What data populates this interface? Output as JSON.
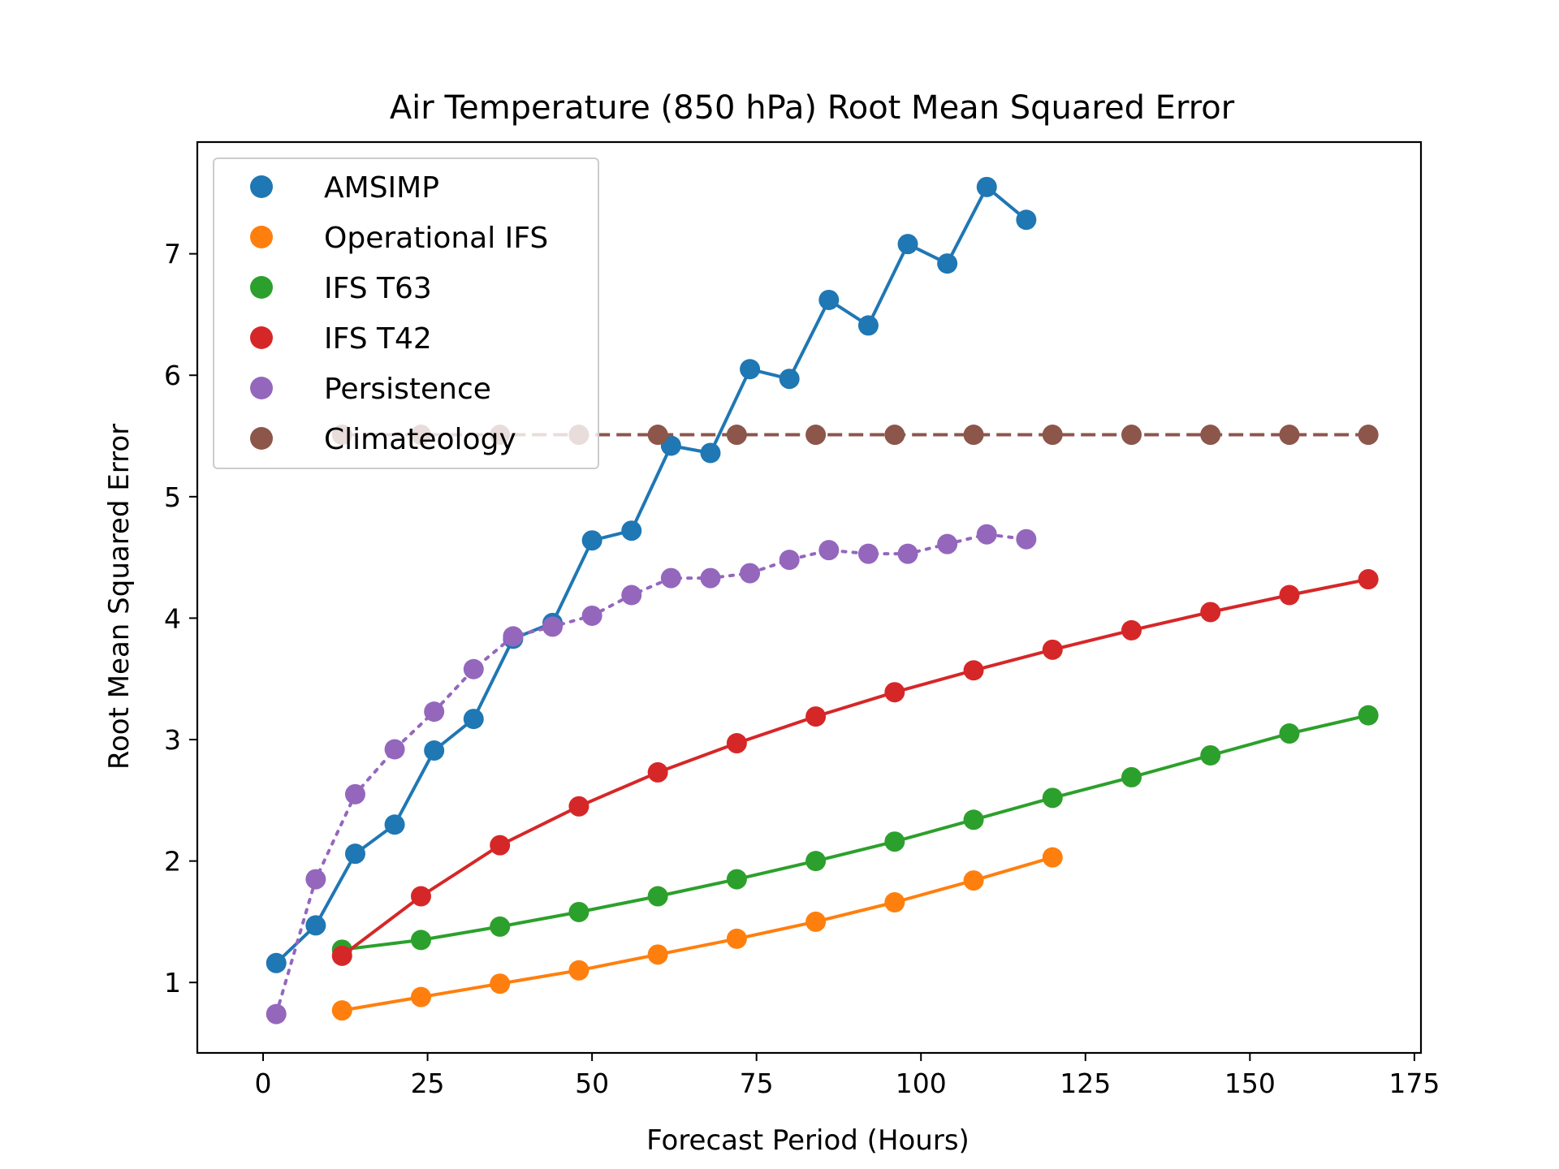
{
  "chart_data": {
    "type": "line",
    "title": "Air Temperature (850 hPa) Root Mean Squared Error",
    "xlabel": "Forecast Period (Hours)",
    "ylabel": "Root Mean Squared Error",
    "xlim": [
      -10,
      176
    ],
    "ylim": [
      0.42,
      7.92
    ],
    "xticks": [
      0,
      25,
      50,
      75,
      100,
      125,
      150,
      175
    ],
    "yticks": [
      1,
      2,
      3,
      4,
      5,
      6,
      7
    ],
    "grid": false,
    "legend_position": "top-left",
    "series": [
      {
        "name": "AMSIMP",
        "color": "#1f77b4",
        "line_style": "solid",
        "x": [
          2,
          8,
          14,
          20,
          26,
          32,
          38,
          44,
          50,
          56,
          62,
          68,
          74,
          80,
          86,
          92,
          98,
          104,
          110,
          116
        ],
        "y": [
          1.16,
          1.47,
          2.06,
          2.3,
          2.91,
          3.17,
          3.83,
          3.96,
          4.64,
          4.72,
          5.42,
          5.36,
          6.05,
          5.97,
          6.62,
          6.41,
          7.08,
          6.92,
          7.55,
          7.28
        ]
      },
      {
        "name": "Operational IFS",
        "color": "#ff7f0e",
        "line_style": "solid",
        "x": [
          12,
          24,
          36,
          48,
          60,
          72,
          84,
          96,
          108,
          120
        ],
        "y": [
          0.77,
          0.88,
          0.99,
          1.1,
          1.23,
          1.36,
          1.5,
          1.66,
          1.84,
          2.03
        ]
      },
      {
        "name": "IFS T63",
        "color": "#2ca02c",
        "line_style": "solid",
        "x": [
          12,
          24,
          36,
          48,
          60,
          72,
          84,
          96,
          108,
          120,
          132,
          144,
          156,
          168
        ],
        "y": [
          1.27,
          1.35,
          1.46,
          1.58,
          1.71,
          1.85,
          2.0,
          2.16,
          2.34,
          2.52,
          2.69,
          2.87,
          3.05,
          3.2
        ]
      },
      {
        "name": "IFS T42",
        "color": "#d62728",
        "line_style": "solid",
        "x": [
          12,
          24,
          36,
          48,
          60,
          72,
          84,
          96,
          108,
          120,
          132,
          144,
          156,
          168
        ],
        "y": [
          1.22,
          1.71,
          2.13,
          2.45,
          2.73,
          2.97,
          3.19,
          3.39,
          3.57,
          3.74,
          3.9,
          4.05,
          4.19,
          4.32
        ]
      },
      {
        "name": "Persistence",
        "color": "#9467bd",
        "line_style": "dotted",
        "x": [
          2,
          8,
          14,
          20,
          26,
          32,
          38,
          44,
          50,
          56,
          62,
          68,
          74,
          80,
          86,
          92,
          98,
          104,
          110,
          116
        ],
        "y": [
          0.74,
          1.85,
          2.55,
          2.92,
          3.23,
          3.58,
          3.85,
          3.93,
          4.02,
          4.19,
          4.33,
          4.33,
          4.37,
          4.48,
          4.56,
          4.53,
          4.53,
          4.61,
          4.69,
          4.65
        ]
      },
      {
        "name": "Climateology",
        "color": "#8c564b",
        "line_style": "dashed",
        "x": [
          12,
          24,
          36,
          48,
          60,
          72,
          84,
          96,
          108,
          120,
          132,
          144,
          156,
          168
        ],
        "y": [
          5.51,
          5.51,
          5.51,
          5.51,
          5.51,
          5.51,
          5.51,
          5.51,
          5.51,
          5.51,
          5.51,
          5.51,
          5.51,
          5.51
        ]
      }
    ]
  }
}
